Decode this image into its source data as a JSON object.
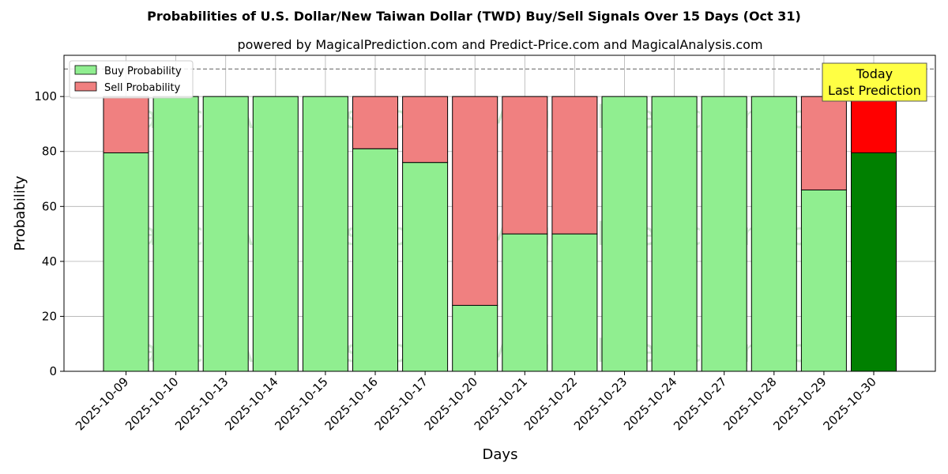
{
  "chart_data": {
    "type": "bar",
    "stacked": true,
    "title": "Probabilities of U.S. Dollar/New Taiwan Dollar (TWD) Buy/Sell Signals Over 15 Days (Oct 31)",
    "subtitle": "powered by MagicalPrediction.com and Predict-Price.com and MagicalAnalysis.com",
    "xlabel": "Days",
    "ylabel": "Probability",
    "ylim": [
      0,
      115
    ],
    "yticks": [
      0,
      20,
      40,
      60,
      80,
      100
    ],
    "grid": true,
    "legend_position": "top-left",
    "reference_line": 110,
    "categories": [
      "2025-10-09",
      "2025-10-10",
      "2025-10-13",
      "2025-10-14",
      "2025-10-15",
      "2025-10-16",
      "2025-10-17",
      "2025-10-20",
      "2025-10-21",
      "2025-10-22",
      "2025-10-23",
      "2025-10-24",
      "2025-10-27",
      "2025-10-28",
      "2025-10-29",
      "2025-10-30"
    ],
    "series": [
      {
        "name": "Buy Probability",
        "color": "#90ee90",
        "highlight_color": "#008000",
        "values": [
          79.5,
          100,
          100,
          100,
          100,
          81,
          76,
          24,
          50,
          50,
          100,
          100,
          100,
          100,
          66,
          79.5
        ]
      },
      {
        "name": "Sell Probability",
        "color": "#f08080",
        "highlight_color": "#ff0000",
        "values": [
          20.5,
          0,
          0,
          0,
          0,
          19,
          24,
          76,
          50,
          50,
          0,
          0,
          0,
          0,
          34,
          20.5
        ]
      }
    ],
    "annotation": {
      "line1": "Today",
      "line2": "Last Prediction",
      "bg_color": "#ffff44"
    },
    "watermarks": [
      "MagicalAnalysis.com",
      "MagicalPrediction.com"
    ]
  }
}
